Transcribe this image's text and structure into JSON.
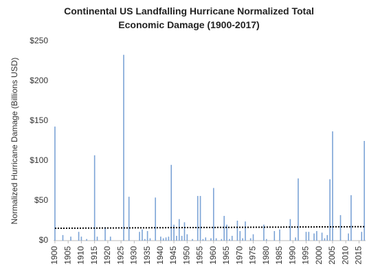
{
  "chart_data": {
    "type": "bar",
    "title": "Continental US Landfalling Hurricane Normalized Total Economic Damage  (1900-2017)",
    "y_label": "Normalized Hurricane Damage (Billions USD)",
    "color": "#7ba3d6",
    "x": [
      1900,
      1901,
      1902,
      1903,
      1904,
      1905,
      1906,
      1907,
      1908,
      1909,
      1910,
      1911,
      1912,
      1913,
      1914,
      1915,
      1916,
      1917,
      1918,
      1919,
      1920,
      1921,
      1922,
      1923,
      1924,
      1925,
      1926,
      1927,
      1928,
      1929,
      1930,
      1931,
      1932,
      1933,
      1934,
      1935,
      1936,
      1937,
      1938,
      1939,
      1940,
      1941,
      1942,
      1943,
      1944,
      1945,
      1946,
      1947,
      1948,
      1949,
      1950,
      1951,
      1952,
      1953,
      1954,
      1955,
      1956,
      1957,
      1958,
      1959,
      1960,
      1961,
      1962,
      1963,
      1964,
      1965,
      1966,
      1967,
      1968,
      1969,
      1970,
      1971,
      1972,
      1973,
      1974,
      1975,
      1976,
      1977,
      1978,
      1979,
      1980,
      1981,
      1982,
      1983,
      1984,
      1985,
      1986,
      1987,
      1988,
      1989,
      1990,
      1991,
      1992,
      1993,
      1994,
      1995,
      1996,
      1997,
      1998,
      1999,
      2000,
      2001,
      2002,
      2003,
      2004,
      2005,
      2006,
      2007,
      2008,
      2009,
      2010,
      2011,
      2012,
      2013,
      2014,
      2015,
      2016,
      2017
    ],
    "values": [
      143,
      0,
      0,
      7,
      0,
      0,
      5,
      0,
      0,
      11,
      5,
      0,
      2,
      0,
      0,
      107,
      5,
      0,
      0,
      17,
      0,
      5,
      0,
      0,
      0,
      0,
      233,
      0,
      55,
      0,
      0,
      0,
      11,
      14,
      2,
      12,
      3,
      0,
      54,
      0,
      5,
      3,
      4,
      5,
      95,
      20,
      6,
      27,
      6,
      23,
      8,
      0,
      2,
      0,
      56,
      56,
      2,
      4,
      0,
      3,
      66,
      3,
      0,
      2,
      31,
      20,
      2,
      6,
      0,
      25,
      12,
      3,
      24,
      0,
      3,
      8,
      0,
      0,
      0,
      20,
      2,
      0,
      0,
      12,
      0,
      14,
      0,
      0,
      0,
      27,
      0,
      4,
      78,
      0,
      0,
      11,
      11,
      0,
      9,
      12,
      0,
      10,
      3,
      7,
      77,
      137,
      0,
      0,
      32,
      0,
      0,
      9,
      57,
      0,
      0,
      0,
      11,
      125
    ],
    "xlim": [
      1899.5,
      2017.5
    ],
    "xticks": [
      1900,
      1905,
      1910,
      1915,
      1920,
      1925,
      1930,
      1935,
      1940,
      1945,
      1950,
      1955,
      1960,
      1965,
      1970,
      1975,
      1980,
      1985,
      1990,
      1995,
      2000,
      2005,
      2010,
      2015
    ],
    "ylim": [
      0,
      250
    ],
    "yticks": [
      {
        "value": 0,
        "label": "$0"
      },
      {
        "value": 50,
        "label": "$50"
      },
      {
        "value": 100,
        "label": "$100"
      },
      {
        "value": 150,
        "label": "$150"
      },
      {
        "value": 200,
        "label": "$200"
      },
      {
        "value": 250,
        "label": "$250"
      }
    ],
    "trend_line": {
      "x": [
        1900,
        2017
      ],
      "values": [
        15.5,
        17.5
      ],
      "color": "#000000"
    },
    "grid": false
  }
}
